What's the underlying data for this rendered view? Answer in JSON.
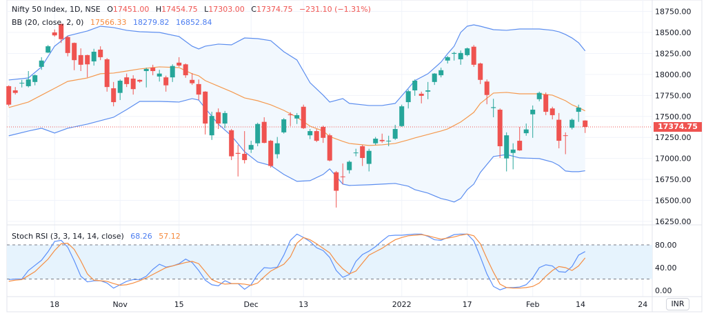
{
  "legend": {
    "symbol": "Nifty 50 Index, 1D, NSE",
    "o_label": "O",
    "o_value": "17451.00",
    "h_label": "H",
    "h_value": "17454.75",
    "l_label": "L",
    "l_value": "17303.00",
    "c_label": "C",
    "c_value": "17374.75",
    "change": "−231.10 (−1.31%)",
    "bb_title": "BB (20, close, 2, 0)",
    "bb_basis": "17566.33",
    "bb_upper": "18279.82",
    "bb_lower": "16852.84",
    "stoch_title": "Stoch RSI (3, 3, 14, 14, close)",
    "stoch_k": "68.26",
    "stoch_d": "57.12"
  },
  "price_axis": {
    "currency": "INR",
    "current_price": "17374.75"
  },
  "colors": {
    "up": "#26a69a",
    "down": "#ef5350",
    "bb_band": "#5b8def",
    "bb_basis": "#f5994e",
    "bb_fill": "#f2f8fe",
    "stoch_k": "#5b8ff9",
    "stoch_d": "#f58d42",
    "stoch_fill": "#e6f3fd",
    "grid": "#f0f3fa"
  },
  "chart_data": [
    {
      "type": "candlestick",
      "title": "Nifty 50 Index, 1D, NSE",
      "ylim": [
        16150,
        18750
      ],
      "yticks": [
        "18750.00",
        "18500.00",
        "18250.00",
        "18000.00",
        "17750.00",
        "17500.00",
        "17250.00",
        "17000.00",
        "16750.00",
        "16500.00",
        "16250.00"
      ],
      "ytick_values": [
        18750,
        18500,
        18250,
        18000,
        17750,
        17500,
        17250,
        17000,
        16750,
        16500,
        16250
      ],
      "xticks": [
        {
          "label": "18",
          "index": 7
        },
        {
          "label": "Nov",
          "index": 17
        },
        {
          "label": "15",
          "index": 26
        },
        {
          "label": "Dec",
          "index": 37
        },
        {
          "label": "13",
          "index": 45
        },
        {
          "label": "2022",
          "index": 60
        },
        {
          "label": "17",
          "index": 70
        },
        {
          "label": "Feb",
          "index": 80
        },
        {
          "label": "14",
          "index": 87.3
        },
        {
          "label": "24",
          "index": 96.8
        }
      ],
      "ohlc": [
        [
          17860,
          17870,
          17620,
          17640
        ],
        [
          17810,
          17850,
          17760,
          17780
        ],
        [
          17895,
          17935,
          17845,
          17900
        ],
        [
          17860,
          18040,
          17845,
          17940
        ],
        [
          17910,
          18000,
          17870,
          17990
        ],
        [
          18090,
          18205,
          18055,
          18165
        ],
        [
          18260,
          18350,
          18255,
          18335
        ],
        [
          18500,
          18535,
          18450,
          18465
        ],
        [
          18600,
          18605,
          18375,
          18420
        ],
        [
          18445,
          18460,
          18215,
          18255
        ],
        [
          18375,
          18380,
          18050,
          18170
        ],
        [
          18230,
          18310,
          18040,
          18115
        ],
        [
          18230,
          18235,
          17965,
          18120
        ],
        [
          18155,
          18305,
          18105,
          18270
        ],
        [
          18295,
          18335,
          18170,
          18205
        ],
        [
          18180,
          18195,
          17795,
          17850
        ],
        [
          17835,
          17910,
          17620,
          17670
        ],
        [
          17780,
          17940,
          17695,
          17925
        ],
        [
          17965,
          18010,
          17850,
          17885
        ],
        [
          17950,
          17990,
          17760,
          17825
        ],
        [
          17935,
          17940,
          17900,
          17915
        ],
        [
          18040,
          18080,
          17845,
          18065
        ],
        [
          18080,
          18115,
          17990,
          18040
        ],
        [
          17975,
          18055,
          17915,
          18010
        ],
        [
          17965,
          17985,
          17795,
          17870
        ],
        [
          17965,
          18120,
          17910,
          18100
        ],
        [
          18140,
          18205,
          18090,
          18105
        ],
        [
          18120,
          18130,
          17960,
          17990
        ],
        [
          17935,
          18015,
          17875,
          17895
        ],
        [
          17885,
          17940,
          17695,
          17760
        ],
        [
          17795,
          17800,
          17285,
          17415
        ],
        [
          17275,
          17555,
          17220,
          17505
        ],
        [
          17550,
          17595,
          17350,
          17415
        ],
        [
          17415,
          17565,
          17360,
          17540
        ],
        [
          17335,
          17350,
          16980,
          17025
        ],
        [
          17065,
          17160,
          16785,
          17055
        ],
        [
          17055,
          17325,
          16940,
          16980
        ],
        [
          17105,
          17210,
          17065,
          17160
        ],
        [
          17180,
          17425,
          17145,
          17410
        ],
        [
          17435,
          17490,
          17180,
          17185
        ],
        [
          17210,
          17220,
          16890,
          16910
        ],
        [
          17050,
          17255,
          17000,
          17180
        ],
        [
          17310,
          17480,
          17295,
          17465
        ],
        [
          17525,
          17550,
          17385,
          17515
        ],
        [
          17475,
          17540,
          17410,
          17515
        ],
        [
          17615,
          17640,
          17350,
          17360
        ],
        [
          17275,
          17350,
          17230,
          17325
        ],
        [
          17325,
          17350,
          17195,
          17210
        ],
        [
          17375,
          17390,
          17185,
          17245
        ],
        [
          17275,
          17295,
          16965,
          16975
        ],
        [
          16835,
          16850,
          16415,
          16615
        ],
        [
          16785,
          16940,
          16695,
          16780
        ],
        [
          16860,
          16975,
          16820,
          16960
        ],
        [
          17065,
          17115,
          17025,
          17070
        ],
        [
          17145,
          17160,
          16910,
          17005
        ],
        [
          16935,
          17115,
          16845,
          17090
        ],
        [
          17180,
          17255,
          17160,
          17235
        ],
        [
          17220,
          17295,
          17185,
          17205
        ],
        [
          17205,
          17270,
          17145,
          17210
        ],
        [
          17235,
          17400,
          17220,
          17350
        ],
        [
          17385,
          17640,
          17375,
          17620
        ],
        [
          17670,
          17820,
          17595,
          17800
        ],
        [
          17810,
          17940,
          17745,
          17925
        ],
        [
          17770,
          17795,
          17655,
          17745
        ],
        [
          17795,
          17910,
          17705,
          17810
        ],
        [
          17910,
          18015,
          17875,
          18010
        ],
        [
          17990,
          18080,
          17965,
          18050
        ],
        [
          18165,
          18220,
          18130,
          18205
        ],
        [
          18245,
          18270,
          18165,
          18255
        ],
        [
          18180,
          18285,
          18115,
          18255
        ],
        [
          18230,
          18320,
          18215,
          18310
        ],
        [
          18330,
          18350,
          18090,
          18115
        ],
        [
          18130,
          18140,
          17885,
          17935
        ],
        [
          17915,
          17940,
          17645,
          17755
        ],
        [
          17600,
          17710,
          17490,
          17610
        ],
        [
          17580,
          17595,
          17005,
          17145
        ],
        [
          17000,
          17310,
          16845,
          17275
        ],
        [
          17065,
          17180,
          16870,
          17105
        ],
        [
          17210,
          17375,
          17090,
          17095
        ],
        [
          17300,
          17415,
          17270,
          17345
        ],
        [
          17525,
          17630,
          17245,
          17580
        ],
        [
          17705,
          17795,
          17680,
          17780
        ],
        [
          17760,
          17785,
          17515,
          17555
        ],
        [
          17595,
          17615,
          17465,
          17515
        ],
        [
          17460,
          17540,
          17120,
          17210
        ],
        [
          17275,
          17310,
          17050,
          17270
        ],
        [
          17365,
          17475,
          17345,
          17460
        ],
        [
          17555,
          17640,
          17435,
          17605
        ],
        [
          17451,
          17454.75,
          17303,
          17374.75
        ]
      ],
      "bollinger": {
        "index": [
          0,
          3,
          5,
          7,
          9,
          12,
          14,
          16,
          18,
          20,
          23,
          26,
          28,
          29,
          30,
          32,
          34,
          36,
          38,
          40,
          42,
          44,
          46,
          48,
          49,
          51,
          52,
          55,
          57,
          59,
          61,
          62,
          64,
          66,
          67,
          68,
          69,
          70,
          71,
          72,
          74,
          76,
          78,
          81,
          83,
          84,
          85,
          86,
          87,
          88
        ],
        "upper": [
          17934,
          17958,
          18090,
          18336,
          18459,
          18517,
          18574,
          18558,
          18525,
          18508,
          18500,
          18451,
          18336,
          18303,
          18336,
          18361,
          18352,
          18434,
          18426,
          18402,
          18270,
          18172,
          17901,
          17753,
          17671,
          17712,
          17655,
          17630,
          17630,
          17655,
          17835,
          17926,
          18008,
          18147,
          18246,
          18336,
          18500,
          18574,
          18590,
          18574,
          18533,
          18525,
          18541,
          18541,
          18525,
          18508,
          18476,
          18434,
          18377,
          18279.82
        ],
        "basis": [
          17605,
          17671,
          17753,
          17835,
          17917,
          17958,
          18008,
          18016,
          18040,
          18065,
          18090,
          18081,
          18008,
          17983,
          17926,
          17860,
          17794,
          17720,
          17687,
          17638,
          17572,
          17490,
          17384,
          17326,
          17260,
          17203,
          17178,
          17154,
          17162,
          17178,
          17220,
          17244,
          17285,
          17326,
          17351,
          17392,
          17433,
          17490,
          17548,
          17655,
          17778,
          17786,
          17769,
          17769,
          17753,
          17720,
          17687,
          17638,
          17605,
          17566.33
        ],
        "lower": [
          17269,
          17326,
          17359,
          17302,
          17359,
          17408,
          17449,
          17490,
          17581,
          17679,
          17679,
          17671,
          17712,
          17695,
          17597,
          17408,
          17269,
          17080,
          16957,
          16916,
          16809,
          16727,
          16735,
          16809,
          16875,
          16694,
          16678,
          16686,
          16694,
          16702,
          16669,
          16628,
          16587,
          16522,
          16505,
          16481,
          16522,
          16628,
          16694,
          16833,
          17022,
          17046,
          17006,
          16998,
          16957,
          16916,
          16850,
          16842,
          16842,
          16852.84
        ]
      }
    },
    {
      "type": "line",
      "title": "Stoch RSI (3, 3, 14, 14, close)",
      "ylim": [
        0,
        100
      ],
      "yticks": [
        "80.00",
        "40.00",
        "0.00"
      ],
      "ytick_values": [
        80,
        40,
        0
      ],
      "bands": [
        20,
        80
      ],
      "series": [
        {
          "name": "K",
          "values": [
            19,
            20,
            20,
            35,
            44,
            53,
            68,
            86,
            88,
            76,
            52,
            25,
            15,
            17,
            17,
            13,
            4,
            10,
            16,
            19,
            19,
            25,
            37,
            46,
            41,
            43,
            47,
            55,
            49,
            35,
            18,
            10,
            8,
            17,
            12,
            12,
            2,
            10,
            28,
            40,
            39,
            41,
            62,
            88,
            99,
            93,
            86,
            75,
            70,
            58,
            35,
            23,
            28,
            51,
            63,
            69,
            77,
            87,
            96,
            97,
            97,
            98,
            99,
            99,
            95,
            89,
            88,
            93,
            98,
            99,
            99,
            87,
            59,
            29,
            7,
            1,
            5,
            5,
            6,
            10,
            22,
            40,
            45,
            43,
            33,
            32,
            42,
            62,
            68.26
          ]
        },
        {
          "name": "D",
          "values": [
            16,
            18,
            19,
            26,
            33,
            44,
            55,
            70,
            82,
            83,
            72,
            52,
            29,
            18,
            17,
            16,
            12,
            9,
            10,
            13,
            17,
            22,
            28,
            34,
            40,
            43,
            46,
            49,
            51,
            47,
            33,
            19,
            14,
            11,
            12,
            12,
            11,
            9,
            13,
            24,
            34,
            40,
            46,
            59,
            83,
            93,
            89,
            82,
            74,
            66,
            50,
            38,
            29,
            34,
            48,
            62,
            68,
            74,
            82,
            89,
            93,
            96,
            97,
            98,
            96,
            93,
            90,
            92,
            94,
            97,
            99,
            96,
            82,
            56,
            32,
            11,
            5,
            4,
            4,
            5,
            7,
            13,
            25,
            35,
            42,
            40,
            35,
            43,
            57.12
          ]
        }
      ]
    }
  ]
}
